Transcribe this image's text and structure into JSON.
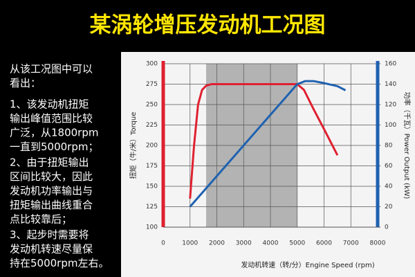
{
  "chart_data": {
    "type": "line",
    "title": "某涡轮增压发动机工况图",
    "x_label": "发动机转速（转/分）Engine Speed (rpm)",
    "y_label": "扭矩（牛/米）Torque",
    "y2_label": "功率（千瓦）Power Output (kW)",
    "xlim": [
      0,
      8000
    ],
    "xticks": [
      0,
      1000,
      2000,
      3000,
      4000,
      5000,
      6000,
      7000,
      8000
    ],
    "ylim": [
      100,
      300
    ],
    "yticks": [
      100,
      125,
      150,
      175,
      200,
      225,
      250,
      275,
      300
    ],
    "y2lim": [
      0,
      160
    ],
    "y2ticks": [
      0,
      20,
      40,
      60,
      80,
      100,
      120,
      140,
      160
    ],
    "shaded_range": [
      1600,
      5000
    ],
    "shaded_color": "#b3b3b3",
    "grid": true,
    "series": [
      {
        "name": "Torque",
        "color": "#e02030",
        "x": [
          1000,
          1150,
          1300,
          1450,
          1600,
          1800,
          5000,
          5250,
          5600,
          6000,
          6500
        ],
        "values": [
          135,
          200,
          250,
          268,
          273,
          275,
          275,
          268,
          245,
          220,
          188
        ]
      },
      {
        "name": "Power Output",
        "axis": "y2",
        "color": "#1f62b0",
        "x": [
          1000,
          2000,
          3000,
          4000,
          4600,
          5000,
          5300,
          5600,
          6000,
          6500,
          6800
        ],
        "values": [
          20,
          50,
          80,
          110,
          128,
          140,
          143,
          143,
          141,
          138,
          134
        ]
      }
    ]
  },
  "panel": {
    "paragraphs": [
      [
        "从该工况图中可以",
        "看出："
      ],
      [
        "1、该发动机扭矩",
        "输出峰值范围比较",
        "广泛，从1800rpm",
        "一直到5000rpm；"
      ],
      [
        "2、由于扭矩输出",
        "区间比较大，因此",
        "发动机功率输出与",
        "扭矩输出曲线重合",
        "点比较靠后；"
      ],
      [
        "3、起步时需要将",
        "发动机转速尽量保",
        "持在5000rpm左右。"
      ]
    ]
  }
}
